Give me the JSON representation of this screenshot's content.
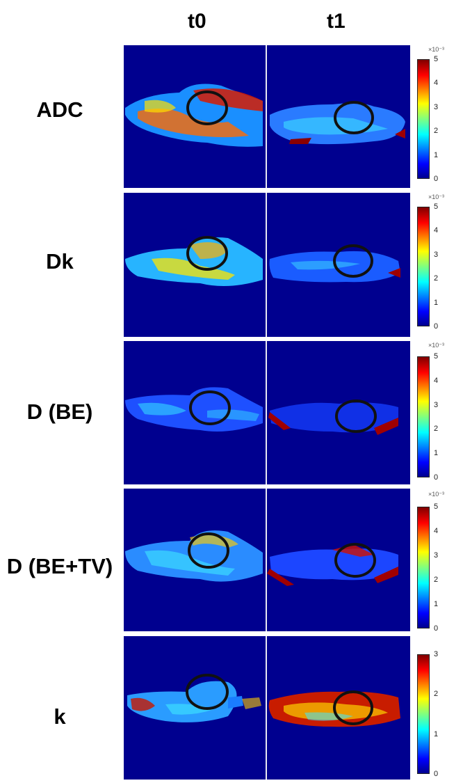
{
  "columns": [
    "t0",
    "t1"
  ],
  "rows": [
    {
      "label": "ADC",
      "colorbar": {
        "exponent": "×10⁻³",
        "ticks": [
          "5",
          "4",
          "3",
          "2",
          "1",
          "0"
        ]
      }
    },
    {
      "label": "Dk",
      "colorbar": {
        "exponent": "×10⁻³",
        "ticks": [
          "5",
          "4",
          "3",
          "2",
          "1",
          "0"
        ]
      }
    },
    {
      "label": "D (BE)",
      "colorbar": {
        "exponent": "×10⁻³",
        "ticks": [
          "5",
          "4",
          "3",
          "2",
          "1",
          "0"
        ]
      }
    },
    {
      "label": "D (BE+TV)",
      "colorbar": {
        "exponent": "×10⁻³",
        "ticks": [
          "5",
          "4",
          "3",
          "2",
          "1",
          "0"
        ]
      }
    },
    {
      "label": "k",
      "colorbar": {
        "exponent": "",
        "ticks": [
          "3",
          "2",
          "1",
          "0"
        ]
      }
    }
  ],
  "colormap": "jet",
  "colors": {
    "background": "#00008f",
    "ring": "#111111"
  }
}
